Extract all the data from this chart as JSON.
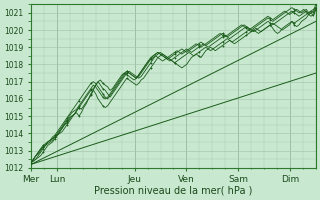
{
  "title": "",
  "xlabel": "Pression niveau de la mer( hPa )",
  "bg_color": "#c8e8d0",
  "grid_color": "#a8c8b0",
  "line_color": "#1a5c1a",
  "ylim": [
    1012,
    1021.5
  ],
  "yticks": [
    1012,
    1013,
    1014,
    1015,
    1016,
    1017,
    1018,
    1019,
    1020,
    1021
  ],
  "day_labels": [
    "Mer",
    "Lun",
    "Jeu",
    "Ven",
    "Sam",
    "Dim"
  ],
  "day_positions": [
    0,
    0.5,
    2.0,
    3.0,
    4.0,
    5.0
  ],
  "xlim": [
    0,
    5.5
  ],
  "num_steps": 120,
  "trend1": [
    1012.2,
    1017.5
  ],
  "trend2": [
    1012.2,
    1020.5
  ],
  "lines": [
    [
      1012.3,
      1012.5,
      1012.7,
      1012.8,
      1013.0,
      1013.2,
      1013.3,
      1013.5,
      1013.6,
      1013.7,
      1013.8,
      1013.9,
      1014.0,
      1014.1,
      1014.3,
      1014.5,
      1014.7,
      1014.9,
      1015.1,
      1015.3,
      1015.5,
      1015.4,
      1015.6,
      1015.8,
      1016.0,
      1016.2,
      1016.5,
      1016.3,
      1016.0,
      1015.8,
      1015.6,
      1015.5,
      1015.6,
      1015.8,
      1016.0,
      1016.2,
      1016.4,
      1016.6,
      1016.8,
      1017.0,
      1017.2,
      1017.1,
      1017.0,
      1016.9,
      1016.8,
      1016.9,
      1017.1,
      1017.2,
      1017.4,
      1017.6,
      1017.8,
      1018.0,
      1018.2,
      1018.4,
      1018.5,
      1018.6,
      1018.5,
      1018.4,
      1018.3,
      1018.2,
      1018.1,
      1018.0,
      1017.9,
      1017.8,
      1017.9,
      1018.0,
      1018.2,
      1018.4,
      1018.5,
      1018.6,
      1018.5,
      1018.4,
      1018.6,
      1018.8,
      1018.9,
      1019.0,
      1018.9,
      1018.8,
      1018.9,
      1019.0,
      1019.1,
      1019.2,
      1019.3,
      1019.4,
      1019.3,
      1019.2,
      1019.3,
      1019.4,
      1019.5,
      1019.6,
      1019.7,
      1019.8,
      1019.9,
      1020.0,
      1019.9,
      1019.8,
      1019.9,
      1020.0,
      1020.1,
      1020.2,
      1020.3,
      1020.1,
      1019.9,
      1019.8,
      1019.9,
      1020.1,
      1020.2,
      1020.3,
      1020.4,
      1020.5,
      1020.3,
      1020.2,
      1020.3,
      1020.5,
      1020.6,
      1020.7,
      1020.9,
      1021.0,
      1020.8,
      1021.2
    ],
    [
      1012.3,
      1012.5,
      1012.7,
      1012.9,
      1013.1,
      1013.3,
      1013.4,
      1013.5,
      1013.6,
      1013.7,
      1013.8,
      1013.9,
      1014.1,
      1014.3,
      1014.5,
      1014.7,
      1014.9,
      1015.0,
      1015.1,
      1015.2,
      1015.0,
      1015.2,
      1015.5,
      1015.7,
      1016.0,
      1016.3,
      1016.5,
      1016.8,
      1017.0,
      1016.8,
      1016.6,
      1016.5,
      1016.3,
      1016.1,
      1016.3,
      1016.5,
      1016.7,
      1016.9,
      1017.1,
      1017.3,
      1017.5,
      1017.6,
      1017.5,
      1017.4,
      1017.3,
      1017.2,
      1017.3,
      1017.5,
      1017.7,
      1017.9,
      1018.1,
      1018.3,
      1018.5,
      1018.6,
      1018.7,
      1018.6,
      1018.5,
      1018.4,
      1018.3,
      1018.2,
      1018.1,
      1018.2,
      1018.3,
      1018.4,
      1018.5,
      1018.6,
      1018.7,
      1018.6,
      1018.5,
      1018.6,
      1018.7,
      1018.8,
      1018.9,
      1019.0,
      1018.9,
      1018.8,
      1018.9,
      1019.0,
      1019.1,
      1019.2,
      1019.3,
      1019.4,
      1019.5,
      1019.4,
      1019.3,
      1019.4,
      1019.5,
      1019.6,
      1019.7,
      1019.8,
      1019.9,
      1020.0,
      1019.9,
      1020.0,
      1020.1,
      1020.0,
      1019.9,
      1020.0,
      1020.1,
      1020.2,
      1020.3,
      1020.4,
      1020.3,
      1020.2,
      1020.1,
      1020.0,
      1020.1,
      1020.2,
      1020.3,
      1020.5,
      1020.4,
      1020.5,
      1020.6,
      1020.7,
      1020.8,
      1020.9,
      1021.0,
      1021.1,
      1021.0,
      1021.3
    ],
    [
      1012.3,
      1012.4,
      1012.5,
      1012.7,
      1012.9,
      1013.1,
      1013.3,
      1013.4,
      1013.5,
      1013.6,
      1013.8,
      1014.0,
      1014.2,
      1014.4,
      1014.6,
      1014.8,
      1015.0,
      1015.2,
      1015.3,
      1015.4,
      1015.6,
      1015.8,
      1016.0,
      1016.2,
      1016.4,
      1016.6,
      1016.8,
      1016.7,
      1016.5,
      1016.3,
      1016.1,
      1016.0,
      1016.1,
      1016.3,
      1016.5,
      1016.7,
      1016.9,
      1017.1,
      1017.3,
      1017.5,
      1017.6,
      1017.5,
      1017.4,
      1017.3,
      1017.2,
      1017.3,
      1017.5,
      1017.7,
      1017.9,
      1018.1,
      1018.3,
      1018.5,
      1018.6,
      1018.7,
      1018.6,
      1018.5,
      1018.4,
      1018.3,
      1018.2,
      1018.3,
      1018.4,
      1018.5,
      1018.6,
      1018.7,
      1018.8,
      1018.9,
      1018.8,
      1018.7,
      1018.8,
      1018.9,
      1019.0,
      1019.1,
      1019.2,
      1019.1,
      1019.0,
      1019.1,
      1019.2,
      1019.3,
      1019.4,
      1019.5,
      1019.6,
      1019.7,
      1019.6,
      1019.5,
      1019.6,
      1019.7,
      1019.8,
      1019.9,
      1020.0,
      1020.1,
      1020.2,
      1020.1,
      1020.0,
      1019.9,
      1020.0,
      1020.1,
      1020.2,
      1020.3,
      1020.4,
      1020.5,
      1020.4,
      1020.3,
      1020.4,
      1020.5,
      1020.6,
      1020.7,
      1020.8,
      1020.9,
      1021.0,
      1021.1,
      1021.0,
      1020.9,
      1020.8,
      1020.9,
      1021.0,
      1021.1,
      1020.9,
      1020.8,
      1020.9,
      1021.2
    ],
    [
      1012.3,
      1012.5,
      1012.7,
      1012.9,
      1013.1,
      1013.2,
      1013.3,
      1013.5,
      1013.6,
      1013.8,
      1013.9,
      1014.1,
      1014.3,
      1014.5,
      1014.7,
      1014.9,
      1015.1,
      1015.3,
      1015.5,
      1015.7,
      1015.9,
      1016.1,
      1016.3,
      1016.5,
      1016.7,
      1016.9,
      1017.0,
      1016.9,
      1016.7,
      1016.5,
      1016.3,
      1016.1,
      1016.0,
      1016.2,
      1016.4,
      1016.6,
      1016.8,
      1017.0,
      1017.2,
      1017.4,
      1017.6,
      1017.5,
      1017.4,
      1017.3,
      1017.2,
      1017.4,
      1017.6,
      1017.8,
      1018.0,
      1018.2,
      1018.4,
      1018.5,
      1018.6,
      1018.7,
      1018.6,
      1018.5,
      1018.4,
      1018.3,
      1018.4,
      1018.5,
      1018.6,
      1018.7,
      1018.8,
      1018.9,
      1018.8,
      1018.7,
      1018.8,
      1018.9,
      1019.0,
      1019.1,
      1019.2,
      1019.3,
      1019.2,
      1019.1,
      1019.2,
      1019.3,
      1019.4,
      1019.5,
      1019.6,
      1019.7,
      1019.8,
      1019.7,
      1019.6,
      1019.7,
      1019.8,
      1019.9,
      1020.0,
      1020.1,
      1020.2,
      1020.3,
      1020.2,
      1020.1,
      1020.0,
      1020.1,
      1020.2,
      1020.3,
      1020.4,
      1020.5,
      1020.6,
      1020.7,
      1020.6,
      1020.5,
      1020.6,
      1020.7,
      1020.8,
      1020.9,
      1021.0,
      1021.1,
      1021.2,
      1021.3,
      1021.2,
      1021.1,
      1021.0,
      1021.1,
      1021.2,
      1021.0,
      1020.9,
      1021.0,
      1021.1,
      1021.5
    ],
    [
      1012.3,
      1012.4,
      1012.5,
      1012.6,
      1012.7,
      1012.9,
      1013.1,
      1013.3,
      1013.4,
      1013.5,
      1013.7,
      1013.9,
      1014.1,
      1014.3,
      1014.5,
      1014.6,
      1014.8,
      1015.0,
      1015.1,
      1015.3,
      1015.5,
      1015.7,
      1015.9,
      1016.1,
      1016.3,
      1016.5,
      1016.6,
      1016.8,
      1017.0,
      1017.1,
      1016.9,
      1016.8,
      1016.7,
      1016.5,
      1016.6,
      1016.8,
      1017.0,
      1017.2,
      1017.4,
      1017.5,
      1017.4,
      1017.3,
      1017.2,
      1017.1,
      1017.2,
      1017.4,
      1017.6,
      1017.8,
      1018.0,
      1018.2,
      1018.3,
      1018.4,
      1018.5,
      1018.4,
      1018.3,
      1018.2,
      1018.3,
      1018.4,
      1018.5,
      1018.6,
      1018.7,
      1018.8,
      1018.7,
      1018.6,
      1018.7,
      1018.8,
      1018.9,
      1019.0,
      1019.1,
      1019.2,
      1019.1,
      1019.0,
      1019.1,
      1019.2,
      1019.3,
      1019.4,
      1019.5,
      1019.6,
      1019.7,
      1019.8,
      1019.7,
      1019.6,
      1019.7,
      1019.8,
      1019.9,
      1020.0,
      1020.1,
      1020.2,
      1020.3,
      1020.2,
      1020.1,
      1020.0,
      1020.1,
      1020.2,
      1020.3,
      1020.4,
      1020.5,
      1020.6,
      1020.7,
      1020.8,
      1020.7,
      1020.6,
      1020.7,
      1020.8,
      1020.9,
      1021.0,
      1021.1,
      1021.0,
      1020.9,
      1021.0,
      1021.1,
      1021.2,
      1021.1,
      1021.0,
      1021.1,
      1021.2,
      1021.0,
      1021.1,
      1021.2,
      1021.3
    ]
  ],
  "marker_positions": [
    0,
    5,
    10,
    15,
    20,
    25,
    30,
    40,
    50,
    60,
    70,
    80,
    90,
    100,
    110,
    119
  ],
  "fontsize_axis": 6.5,
  "fontsize_label": 7,
  "tick_fontsize": 5.5
}
